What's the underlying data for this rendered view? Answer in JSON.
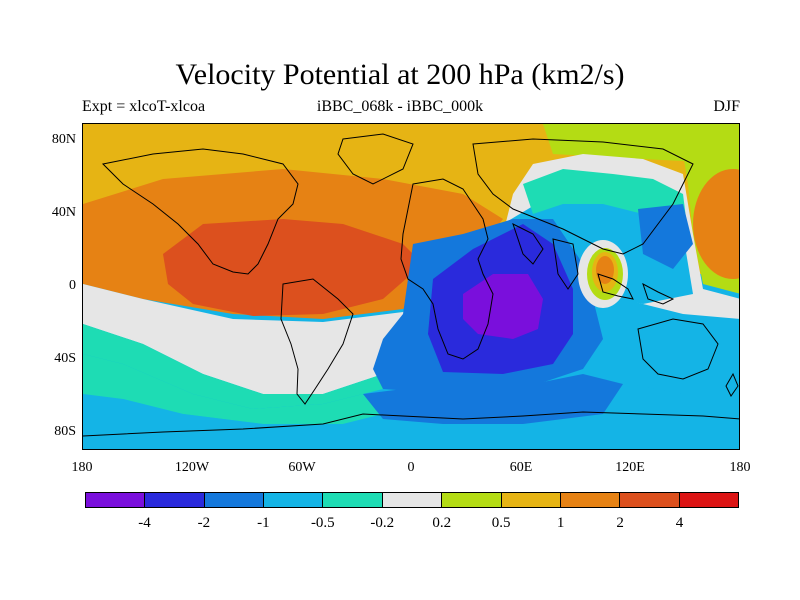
{
  "title": "Velocity Potential at 200 hPa (km2/s)",
  "subtitle_left": "Expt = xlcoT-xlcoa",
  "subtitle_center": "iBBC_068k - iBBC_000k",
  "subtitle_right": "DJF",
  "lat_labels": [
    "80N",
    "40N",
    "0",
    "40S",
    "80S"
  ],
  "lon_labels": [
    "180",
    "120W",
    "60W",
    "0",
    "60E",
    "120E",
    "180"
  ],
  "colorbar": {
    "colors": [
      "#7a0fdc",
      "#2a2adc",
      "#1478dc",
      "#14b4e6",
      "#1edcb4",
      "#e6e6e6",
      "#b4dc14",
      "#e6b414",
      "#e68214",
      "#dc501e",
      "#dc1414"
    ],
    "labels": [
      "-4",
      "-2",
      "-1",
      "-0.5",
      "-0.2",
      "0.2",
      "0.5",
      "1",
      "2",
      "4"
    ]
  }
}
